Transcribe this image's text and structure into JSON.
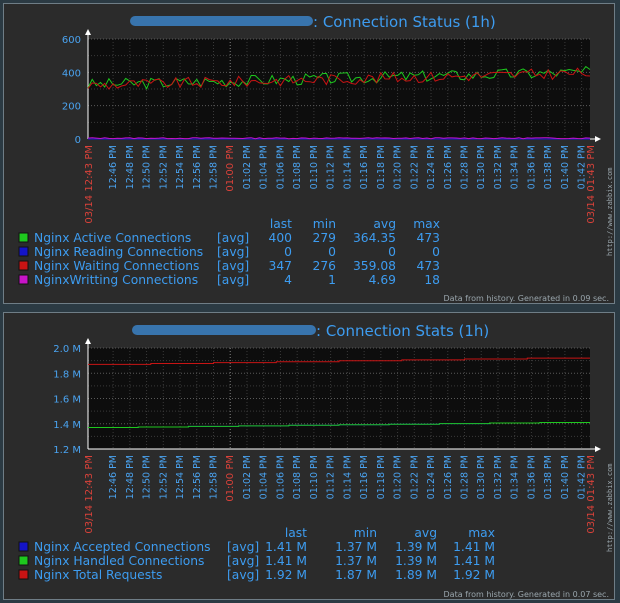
{
  "chart_data": [
    {
      "type": "line",
      "title_suffix": ": Connection Status (1h)",
      "ylim": [
        0,
        600
      ],
      "yticks": [
        "600",
        "400",
        "200",
        "0"
      ],
      "yvals": [
        600,
        400,
        200,
        0
      ],
      "xticks": [
        "12:46 PM",
        "12:48 PM",
        "12:50 PM",
        "12:52 PM",
        "12:54 PM",
        "12:56 PM",
        "12:58 PM",
        "01:00 PM",
        "01:02 PM",
        "01:04 PM",
        "01:06 PM",
        "01:08 PM",
        "01:10 PM",
        "01:12 PM",
        "01:14 PM",
        "01:16 PM",
        "01:18 PM",
        "01:20 PM",
        "01:22 PM",
        "01:24 PM",
        "01:26 PM",
        "01:28 PM",
        "01:30 PM",
        "01:32 PM",
        "01:34 PM",
        "01:36 PM",
        "01:38 PM",
        "01:40 PM",
        "01:42 PM"
      ],
      "x_start_label": "03/14 12:43 PM",
      "x_end_label": "03/14 01:43 PM",
      "x_range_minutes": [
        0,
        60
      ],
      "legend_headers": [
        "last",
        "min",
        "avg",
        "max"
      ],
      "series": [
        {
          "name": "Nginx Active Connections",
          "agg": "[avg]",
          "color": "#1ec81e",
          "last": "400",
          "min": "279",
          "avg": "364.35",
          "max": "473",
          "base": 364,
          "amp": 35,
          "trend": 75,
          "lo": 279,
          "hi": 473,
          "seed": 3
        },
        {
          "name": "Nginx Reading Connections",
          "agg": "[avg]",
          "color": "#1414c8",
          "last": "0",
          "min": "0",
          "avg": "0",
          "max": "0",
          "base": 0,
          "amp": 0,
          "trend": 0,
          "lo": 0,
          "hi": 0,
          "seed": 5
        },
        {
          "name": "Nginx Waiting Connections",
          "agg": "[avg]",
          "color": "#c81414",
          "last": "347",
          "min": "276",
          "avg": "359.08",
          "max": "473",
          "base": 359,
          "amp": 33,
          "trend": 75,
          "lo": 276,
          "hi": 473,
          "seed": 9
        },
        {
          "name": "NginxWritting Connections",
          "agg": "[avg]",
          "color": "#c814c8",
          "last": "4",
          "min": "1",
          "avg": "4.69",
          "max": "18",
          "base": 5,
          "amp": 3,
          "trend": 0,
          "lo": 1,
          "hi": 18,
          "seed": 13
        }
      ],
      "footer": "Data from history. Generated in 0.09 sec."
    },
    {
      "type": "line",
      "title_suffix": ": Connection Stats (1h)",
      "ylim": [
        1200000,
        2000000
      ],
      "yticks": [
        "2.0 M",
        "1.8 M",
        "1.6 M",
        "1.4 M",
        "1.2 M"
      ],
      "yvals": [
        2000000,
        1800000,
        1600000,
        1400000,
        1200000
      ],
      "xticks": [
        "12:46 PM",
        "12:48 PM",
        "12:50 PM",
        "12:52 PM",
        "12:54 PM",
        "12:56 PM",
        "12:58 PM",
        "01:00 PM",
        "01:02 PM",
        "01:04 PM",
        "01:06 PM",
        "01:08 PM",
        "01:10 PM",
        "01:12 PM",
        "01:14 PM",
        "01:16 PM",
        "01:18 PM",
        "01:20 PM",
        "01:22 PM",
        "01:24 PM",
        "01:26 PM",
        "01:28 PM",
        "01:30 PM",
        "01:32 PM",
        "01:34 PM",
        "01:36 PM",
        "01:38 PM",
        "01:40 PM",
        "01:42 PM"
      ],
      "x_start_label": "03/14 12:43 PM",
      "x_end_label": "03/14 01:43 PM",
      "x_range_minutes": [
        0,
        60
      ],
      "legend_headers": [
        "last",
        "min",
        "avg",
        "max"
      ],
      "series": [
        {
          "name": "Nginx Accepted Connections",
          "agg": "[avg]",
          "color": "#1414c8",
          "last": "1.41 M",
          "min": "1.37 M",
          "avg": "1.39 M",
          "max": "1.41 M",
          "from": 1370000,
          "to": 1410000,
          "steps": 9
        },
        {
          "name": "Nginx Handled Connections",
          "agg": "[avg]",
          "color": "#1ec81e",
          "last": "1.41 M",
          "min": "1.37 M",
          "avg": "1.39 M",
          "max": "1.41 M",
          "from": 1370000,
          "to": 1410000,
          "steps": 9
        },
        {
          "name": "Nginx Total Requests",
          "agg": "[avg]",
          "color": "#c81414",
          "last": "1.92 M",
          "min": "1.87 M",
          "avg": "1.89 M",
          "max": "1.92 M",
          "from": 1870000,
          "to": 1920000,
          "steps": 7
        }
      ],
      "footer": "Data from history. Generated in 0.07 sec."
    }
  ],
  "watermark": "http://www.zabbix.com"
}
